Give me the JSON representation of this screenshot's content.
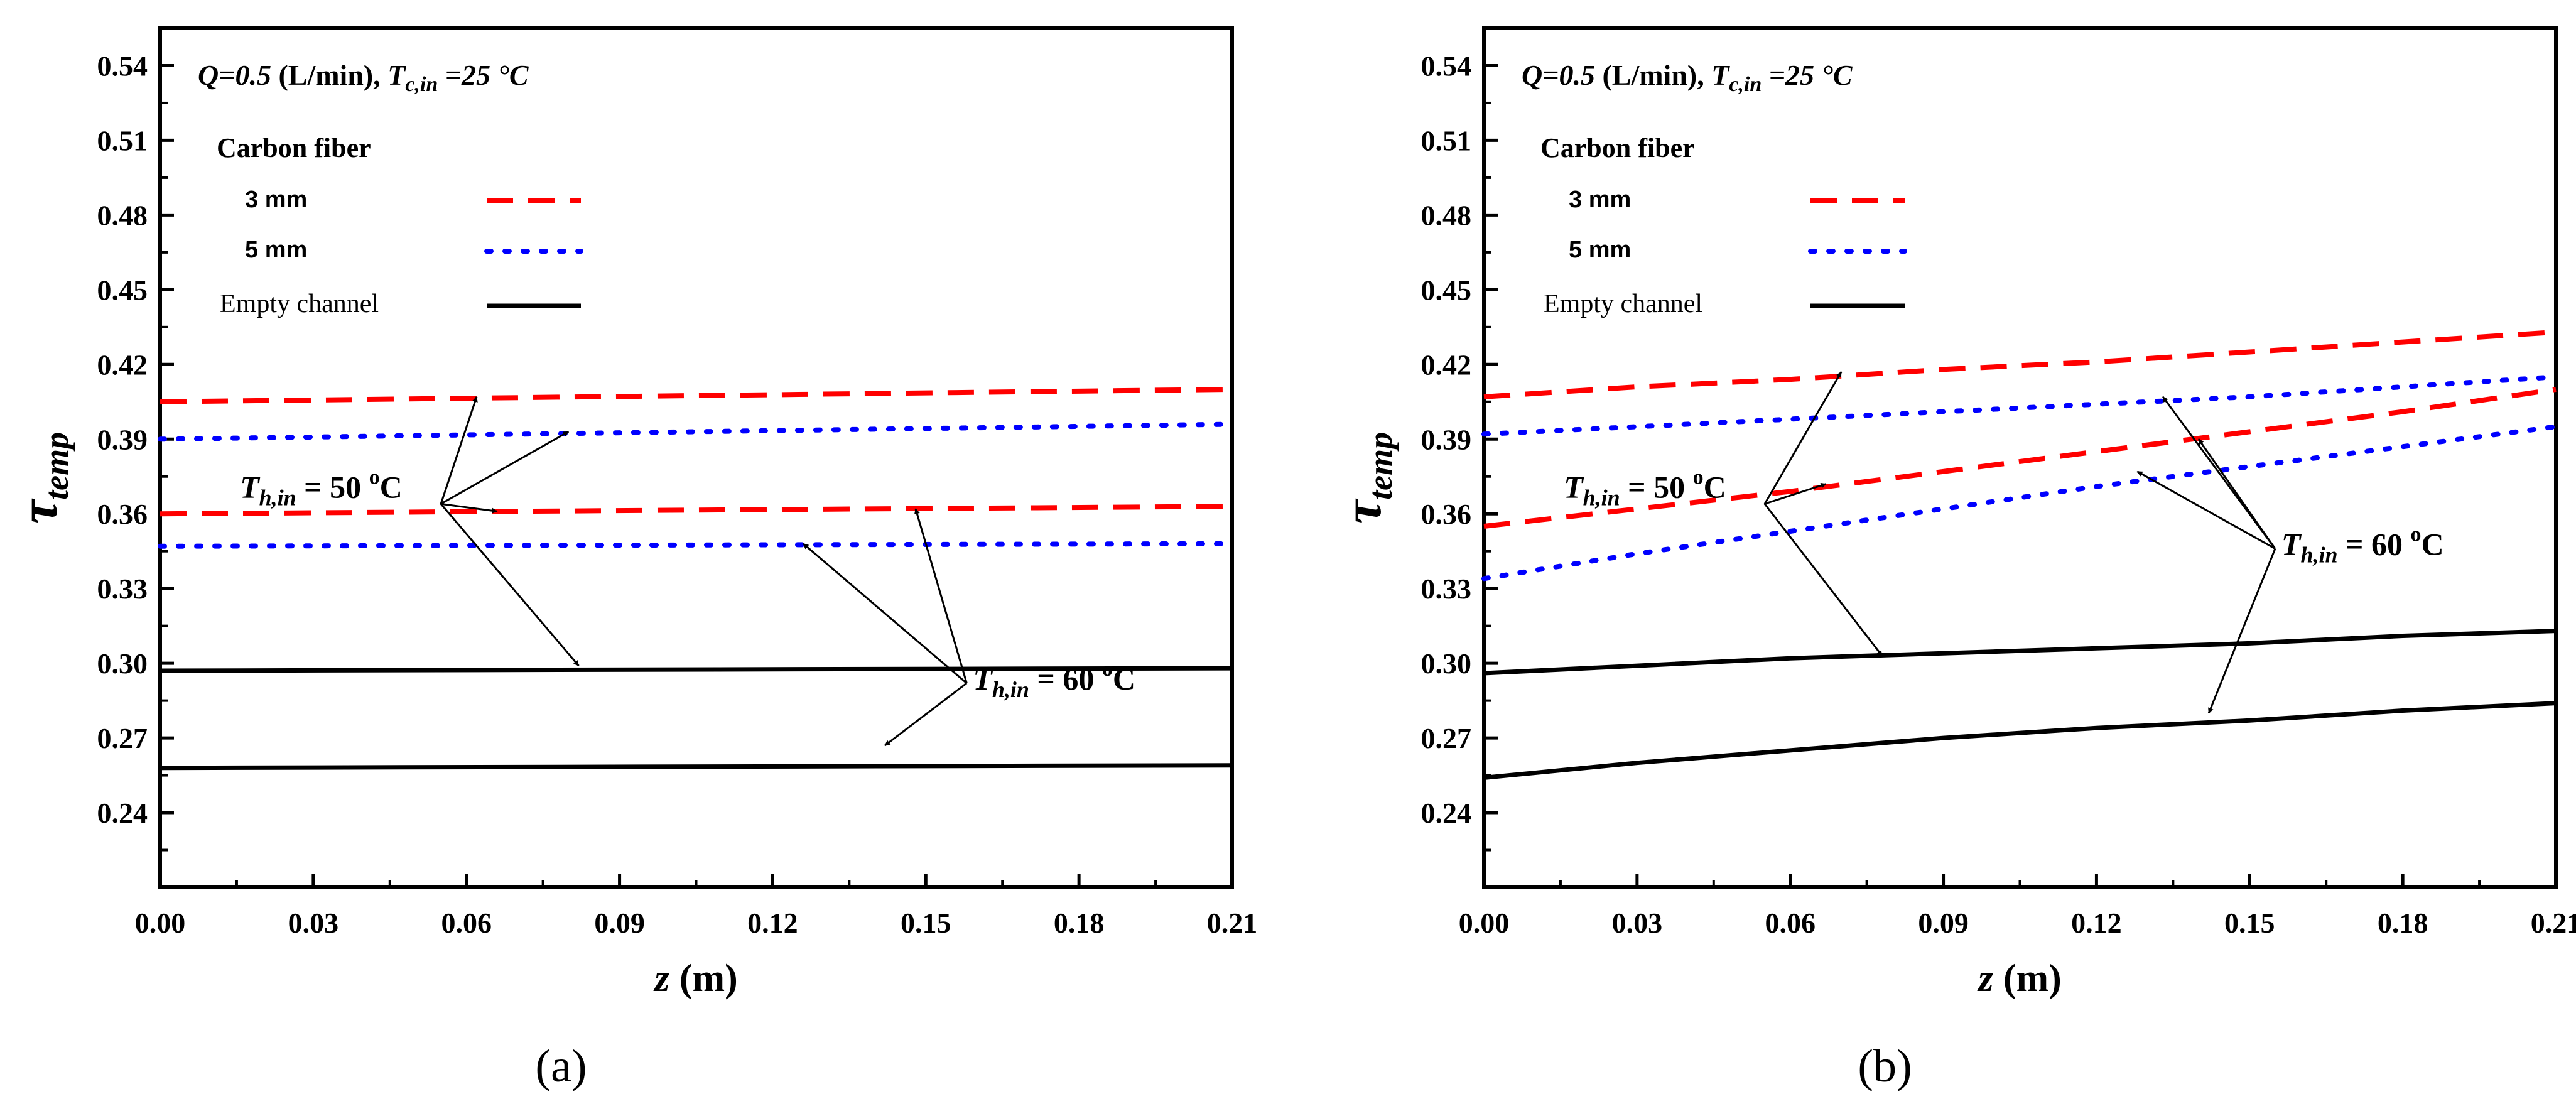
{
  "chart_data": [
    {
      "type": "line",
      "panel_label": "(a)",
      "condition": {
        "q_symbol": "Q",
        "q_value": "=0.5",
        "q_unit": " (L/min), ",
        "t_symbol": "T",
        "t_sub": "c,in",
        "t_value": " =25 °C"
      },
      "ylabel": {
        "symbol": "τ",
        "sub": "temp"
      },
      "xlabel": {
        "symbol": "z",
        "unit": " (m)"
      },
      "xlim": [
        0,
        0.21
      ],
      "ylim": [
        0.21,
        0.555
      ],
      "xticks": [
        0,
        0.03,
        0.06,
        0.09,
        0.12,
        0.15,
        0.18,
        0.21
      ],
      "xtick_labels": [
        "0.00",
        "0.03",
        "0.06",
        "0.09",
        "0.12",
        "0.15",
        "0.18",
        "0.21"
      ],
      "yticks": [
        0.24,
        0.27,
        0.3,
        0.33,
        0.36,
        0.39,
        0.42,
        0.45,
        0.48,
        0.51,
        0.54
      ],
      "ytick_labels": [
        "0.24",
        "0.27",
        "0.30",
        "0.33",
        "0.36",
        "0.39",
        "0.42",
        "0.45",
        "0.48",
        "0.51",
        "0.54"
      ],
      "legend": {
        "title": "Carbon fiber",
        "entries": [
          {
            "label": "3 mm",
            "style": "dash",
            "color": "#ff0000"
          },
          {
            "label": "5 mm",
            "style": "dot",
            "color": "#0000ff"
          },
          {
            "label": "Empty channel",
            "style": "solid",
            "color": "#000000"
          }
        ]
      },
      "series": [
        {
          "name": "3 mm, Th,in = 50 °C",
          "style": "dash",
          "x": [
            0,
            0.21
          ],
          "y": [
            0.405,
            0.41
          ]
        },
        {
          "name": "5 mm, Th,in = 50 °C",
          "style": "dot",
          "x": [
            0,
            0.21
          ],
          "y": [
            0.39,
            0.396
          ]
        },
        {
          "name": "3 mm, Th,in = 60 °C",
          "style": "dash",
          "x": [
            0,
            0.21
          ],
          "y": [
            0.36,
            0.363
          ]
        },
        {
          "name": "5 mm, Th,in = 60 °C",
          "style": "dot",
          "x": [
            0,
            0.21
          ],
          "y": [
            0.347,
            0.348
          ]
        },
        {
          "name": "Empty channel, Th,in = 50 °C",
          "style": "solid",
          "x": [
            0,
            0.21
          ],
          "y": [
            0.297,
            0.298
          ]
        },
        {
          "name": "Empty channel, Th,in = 60 °C",
          "style": "solid",
          "x": [
            0,
            0.21
          ],
          "y": [
            0.258,
            0.259
          ]
        }
      ],
      "annotations": [
        {
          "label": {
            "symbol": "T",
            "sub": "h,in",
            "value": " = 50 ",
            "sup": "o",
            "unit": "C"
          },
          "origin": [
            0.055,
            0.364
          ],
          "targets": [
            [
              0.062,
              0.407
            ],
            [
              0.08,
              0.393
            ],
            [
              0.066,
              0.361
            ],
            [
              0.082,
              0.299
            ]
          ]
        },
        {
          "label": {
            "symbol": "T",
            "sub": "h,in",
            "value": " = 60 ",
            "sup": "o",
            "unit": "C"
          },
          "origin": [
            0.158,
            0.292
          ],
          "targets": [
            [
              0.148,
              0.362
            ],
            [
              0.126,
              0.348
            ],
            [
              0.142,
              0.267
            ]
          ]
        }
      ]
    },
    {
      "type": "line",
      "panel_label": "(b)",
      "condition": {
        "q_symbol": "Q",
        "q_value": "=0.5",
        "q_unit": " (L/min), ",
        "t_symbol": "T",
        "t_sub": "c,in",
        "t_value": " =25 °C"
      },
      "ylabel": {
        "symbol": "τ",
        "sub": "temp"
      },
      "xlabel": {
        "symbol": "z",
        "unit": " (m)"
      },
      "xlim": [
        0,
        0.21
      ],
      "ylim": [
        0.21,
        0.555
      ],
      "xticks": [
        0,
        0.03,
        0.06,
        0.09,
        0.12,
        0.15,
        0.18,
        0.21
      ],
      "xtick_labels": [
        "0.00",
        "0.03",
        "0.06",
        "0.09",
        "0.12",
        "0.15",
        "0.18",
        "0.21"
      ],
      "yticks": [
        0.24,
        0.27,
        0.3,
        0.33,
        0.36,
        0.39,
        0.42,
        0.45,
        0.48,
        0.51,
        0.54
      ],
      "ytick_labels": [
        "0.24",
        "0.27",
        "0.30",
        "0.33",
        "0.36",
        "0.39",
        "0.42",
        "0.45",
        "0.48",
        "0.51",
        "0.54"
      ],
      "legend": {
        "title": "Carbon fiber",
        "entries": [
          {
            "label": "3 mm",
            "style": "dash",
            "color": "#ff0000"
          },
          {
            "label": "5 mm",
            "style": "dot",
            "color": "#0000ff"
          },
          {
            "label": "Empty channel",
            "style": "solid",
            "color": "#000000"
          }
        ]
      },
      "series": [
        {
          "name": "3 mm, Th,in = 50 °C",
          "style": "dash",
          "x": [
            0,
            0.03,
            0.06,
            0.09,
            0.12,
            0.15,
            0.18,
            0.21
          ],
          "y": [
            0.407,
            0.411,
            0.414,
            0.418,
            0.421,
            0.425,
            0.429,
            0.433
          ]
        },
        {
          "name": "5 mm, Th,in = 50 °C",
          "style": "dot",
          "x": [
            0,
            0.03,
            0.06,
            0.09,
            0.12,
            0.15,
            0.18,
            0.21
          ],
          "y": [
            0.392,
            0.395,
            0.398,
            0.401,
            0.404,
            0.407,
            0.411,
            0.415
          ]
        },
        {
          "name": "3 mm, Th,in = 60 °C",
          "style": "dash",
          "x": [
            0,
            0.03,
            0.06,
            0.09,
            0.12,
            0.15,
            0.18,
            0.21
          ],
          "y": [
            0.355,
            0.362,
            0.369,
            0.377,
            0.385,
            0.393,
            0.401,
            0.41
          ]
        },
        {
          "name": "5 mm, Th,in = 60 °C",
          "style": "dot",
          "x": [
            0,
            0.03,
            0.06,
            0.09,
            0.12,
            0.15,
            0.18,
            0.21
          ],
          "y": [
            0.334,
            0.344,
            0.353,
            0.362,
            0.371,
            0.379,
            0.387,
            0.395
          ]
        },
        {
          "name": "Empty channel, Th,in = 50 °C",
          "style": "solid",
          "x": [
            0,
            0.03,
            0.06,
            0.09,
            0.12,
            0.15,
            0.18,
            0.21
          ],
          "y": [
            0.296,
            0.299,
            0.302,
            0.304,
            0.306,
            0.308,
            0.311,
            0.313
          ]
        },
        {
          "name": "Empty channel, Th,in = 60 °C",
          "style": "solid",
          "x": [
            0,
            0.03,
            0.06,
            0.09,
            0.12,
            0.15,
            0.18,
            0.21
          ],
          "y": [
            0.254,
            0.26,
            0.265,
            0.27,
            0.274,
            0.277,
            0.281,
            0.284
          ]
        }
      ],
      "annotations": [
        {
          "label": {
            "symbol": "T",
            "sub": "h,in",
            "value": " = 50 ",
            "sup": "o",
            "unit": "C"
          },
          "origin": [
            0.055,
            0.364
          ],
          "targets": [
            [
              0.07,
              0.417
            ],
            [
              0.067,
              0.372
            ],
            [
              0.078,
              0.303
            ]
          ]
        },
        {
          "label": {
            "symbol": "T",
            "sub": "h,in",
            "value": " = 60 ",
            "sup": "o",
            "unit": "C"
          },
          "origin": [
            0.155,
            0.346
          ],
          "targets": [
            [
              0.133,
              0.407
            ],
            [
              0.14,
              0.39
            ],
            [
              0.128,
              0.377
            ],
            [
              0.142,
              0.28
            ]
          ]
        }
      ]
    }
  ]
}
